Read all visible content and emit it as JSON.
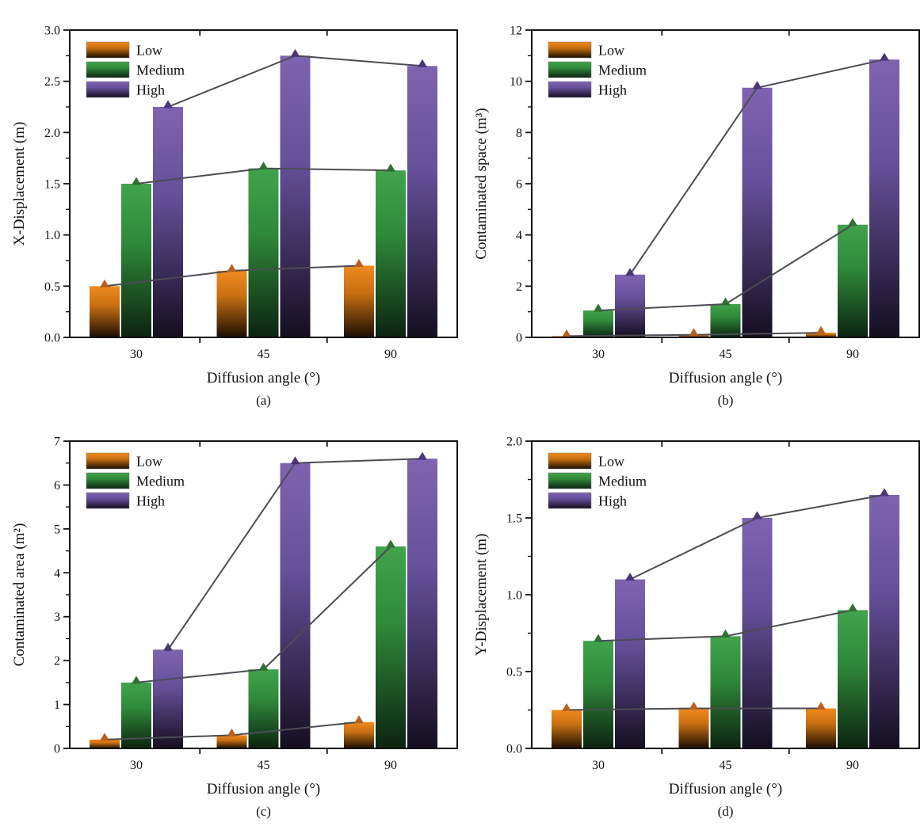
{
  "figure": {
    "description": "Four grouped bar charts with overlaid line-and-triangle-marker series versus diffusion angle",
    "background": "#ffffff"
  },
  "style": {
    "axis_color": "#111111",
    "line_color": "#4C4C54",
    "series": {
      "Low": {
        "bar_top": "#F18A1E",
        "bar_mid": "#C76F12",
        "bar_bottom": "#1C0E02",
        "marker": "#BA5F1F"
      },
      "Medium": {
        "bar_top": "#41A34C",
        "bar_mid": "#2F8A3A",
        "bar_bottom": "#0C2310",
        "marker": "#2F6F33"
      },
      "High": {
        "bar_top": "#7E64B0",
        "bar_mid": "#65509A",
        "bar_bottom": "#150E20",
        "marker": "#4A3575"
      }
    }
  },
  "chart_data": [
    {
      "id": "a",
      "type": "bar",
      "caption": "(a)",
      "xlabel": "Diffusion angle (°)",
      "ylabel": "X-Displacement (m)",
      "categories": [
        "30",
        "45",
        "90"
      ],
      "ylim": [
        0,
        3
      ],
      "ytick_step": 0.5,
      "ytick_decimals": 1,
      "legend_position": "upper-left",
      "grid": false,
      "series": [
        {
          "name": "Low",
          "values": [
            0.5,
            0.65,
            0.7
          ]
        },
        {
          "name": "Medium",
          "values": [
            1.5,
            1.65,
            1.63
          ]
        },
        {
          "name": "High",
          "values": [
            2.25,
            2.75,
            2.65
          ]
        }
      ]
    },
    {
      "id": "b",
      "type": "bar",
      "caption": "(b)",
      "xlabel": "Diffusion angle (°)",
      "ylabel": "Contaminated space (m³)",
      "categories": [
        "30",
        "45",
        "90"
      ],
      "ylim": [
        0,
        12
      ],
      "ytick_step": 2,
      "ytick_decimals": 0,
      "legend_position": "upper-left",
      "grid": false,
      "series": [
        {
          "name": "Low",
          "values": [
            0.05,
            0.1,
            0.18
          ]
        },
        {
          "name": "Medium",
          "values": [
            1.05,
            1.3,
            4.4
          ]
        },
        {
          "name": "High",
          "values": [
            2.45,
            9.75,
            10.85
          ]
        }
      ]
    },
    {
      "id": "c",
      "type": "bar",
      "caption": "(c)",
      "xlabel": "Diffusion angle (°)",
      "ylabel": "Contaminated area (m²)",
      "categories": [
        "30",
        "45",
        "90"
      ],
      "ylim": [
        0,
        7
      ],
      "ytick_step": 1,
      "ytick_decimals": 0,
      "legend_position": "upper-left",
      "grid": false,
      "series": [
        {
          "name": "Low",
          "values": [
            0.2,
            0.3,
            0.6
          ]
        },
        {
          "name": "Medium",
          "values": [
            1.5,
            1.8,
            4.6
          ]
        },
        {
          "name": "High",
          "values": [
            2.25,
            6.5,
            6.6
          ]
        }
      ]
    },
    {
      "id": "d",
      "type": "bar",
      "caption": "(d)",
      "xlabel": "Diffusion angle (°)",
      "ylabel": "Y-Displacement (m)",
      "categories": [
        "30",
        "45",
        "90"
      ],
      "ylim": [
        0,
        2
      ],
      "ytick_step": 0.5,
      "ytick_decimals": 1,
      "legend_position": "upper-left",
      "grid": false,
      "series": [
        {
          "name": "Low",
          "values": [
            0.25,
            0.26,
            0.26
          ]
        },
        {
          "name": "Medium",
          "values": [
            0.7,
            0.73,
            0.9
          ]
        },
        {
          "name": "High",
          "values": [
            1.1,
            1.5,
            1.65
          ]
        }
      ]
    }
  ]
}
